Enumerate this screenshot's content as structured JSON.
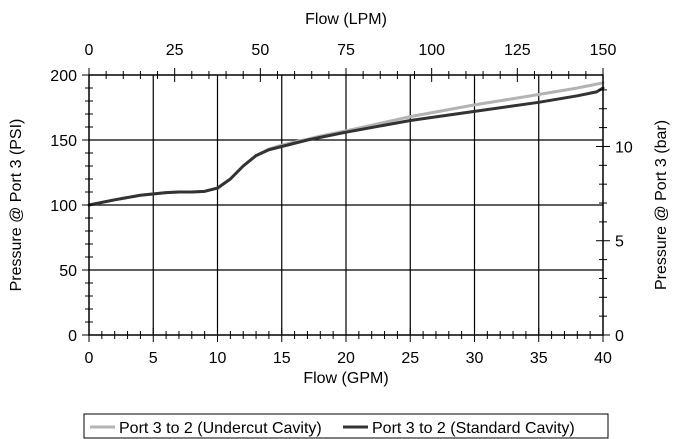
{
  "chart_data": {
    "type": "line",
    "xlabel": "Flow (GPM)",
    "x2label": "Flow (LPM)",
    "ylabel": "Pressure @ Port 3 (PSI)",
    "y2label": "Pressure @ Port 3 (bar)",
    "xlim": [
      0,
      40
    ],
    "ylim": [
      0,
      200
    ],
    "x2lim": [
      0,
      150
    ],
    "y2lim": [
      0,
      13.79
    ],
    "x_ticks": [
      0,
      5,
      10,
      15,
      20,
      25,
      30,
      35,
      40
    ],
    "y_ticks": [
      0,
      50,
      100,
      150,
      200
    ],
    "x2_ticks": [
      0,
      25,
      50,
      75,
      100,
      125,
      150
    ],
    "y2_ticks": [
      0,
      5,
      10
    ],
    "grid": true,
    "legend_position": "bottom",
    "series": [
      {
        "name": "Port 3 to 2 (Undercut Cavity)",
        "color": "#b3b3b3",
        "x": [
          0,
          2,
          4,
          6,
          7,
          8,
          9,
          10,
          11,
          12,
          13,
          14,
          15,
          16,
          17,
          18,
          20,
          25,
          30,
          35,
          38,
          39.5,
          40
        ],
        "y": [
          100,
          104,
          107.5,
          109.5,
          110,
          110,
          110.5,
          113,
          120,
          130,
          138,
          143,
          146,
          148.5,
          150.5,
          153,
          157,
          168,
          177,
          185,
          190,
          193,
          194
        ]
      },
      {
        "name": "Port 3 to 2 (Standard Cavity)",
        "color": "#333333",
        "x": [
          0,
          2,
          4,
          6,
          7,
          8,
          9,
          10,
          11,
          12,
          13,
          14,
          15,
          16,
          17,
          18,
          20,
          25,
          30,
          35,
          38,
          39.5,
          40
        ],
        "y": [
          100,
          104,
          107.5,
          109.5,
          110,
          110,
          110.5,
          113,
          120,
          130,
          138,
          142.5,
          145,
          147.5,
          150,
          152,
          156,
          165,
          172,
          179,
          184,
          187,
          190
        ]
      }
    ]
  }
}
